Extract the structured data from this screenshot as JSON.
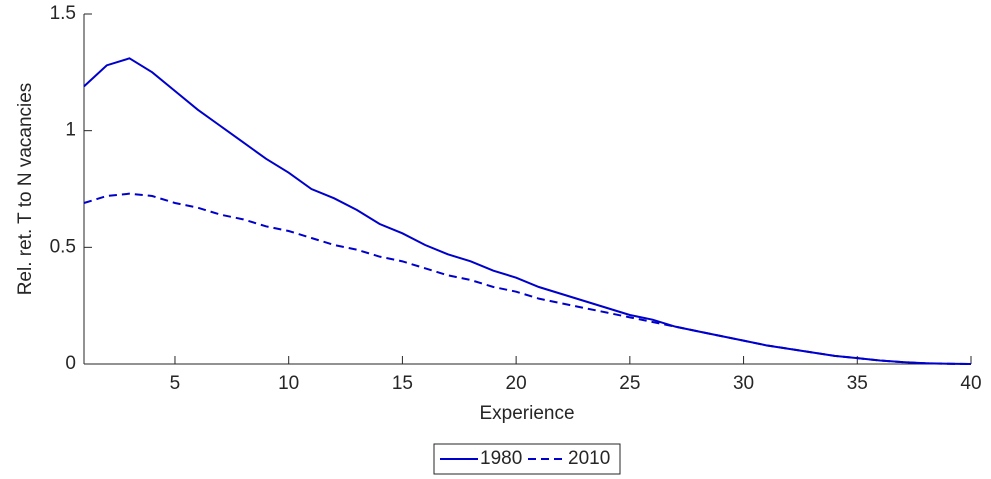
{
  "chart_data": {
    "type": "line",
    "xlabel": "Experience",
    "ylabel": "Rel. ret. T to N vacancies",
    "x": [
      1,
      2,
      3,
      4,
      5,
      6,
      7,
      8,
      9,
      10,
      11,
      12,
      13,
      14,
      15,
      16,
      17,
      18,
      19,
      20,
      21,
      22,
      23,
      24,
      25,
      26,
      27,
      28,
      29,
      30,
      31,
      32,
      33,
      34,
      35,
      36,
      37,
      38,
      39,
      40
    ],
    "series": [
      {
        "name": "1980",
        "color": "#0000cc",
        "linestyle": "solid",
        "values": [
          1.19,
          1.28,
          1.31,
          1.25,
          1.17,
          1.09,
          1.02,
          0.95,
          0.88,
          0.82,
          0.75,
          0.71,
          0.66,
          0.6,
          0.56,
          0.51,
          0.47,
          0.44,
          0.4,
          0.37,
          0.33,
          0.3,
          0.27,
          0.24,
          0.21,
          0.19,
          0.16,
          0.14,
          0.12,
          0.1,
          0.08,
          0.065,
          0.05,
          0.035,
          0.025,
          0.015,
          0.008,
          0.003,
          0.001,
          0
        ]
      },
      {
        "name": "2010",
        "color": "#0000cc",
        "linestyle": "dashed",
        "values": [
          0.69,
          0.72,
          0.73,
          0.72,
          0.69,
          0.67,
          0.64,
          0.62,
          0.59,
          0.57,
          0.54,
          0.51,
          0.49,
          0.46,
          0.44,
          0.41,
          0.38,
          0.36,
          0.33,
          0.31,
          0.28,
          0.26,
          0.24,
          0.22,
          0.2,
          0.18,
          0.16,
          0.14,
          0.12,
          0.1,
          0.08,
          0.065,
          0.05,
          0.035,
          0.025,
          0.015,
          0.008,
          0.003,
          0.001,
          0
        ]
      }
    ],
    "xlim": [
      1,
      40
    ],
    "xticks": [
      5,
      10,
      15,
      20,
      25,
      30,
      35,
      40
    ],
    "ylim": [
      0,
      1.5
    ],
    "yticks": [
      0,
      0.5,
      1,
      1.5
    ],
    "legend": "bottom"
  }
}
